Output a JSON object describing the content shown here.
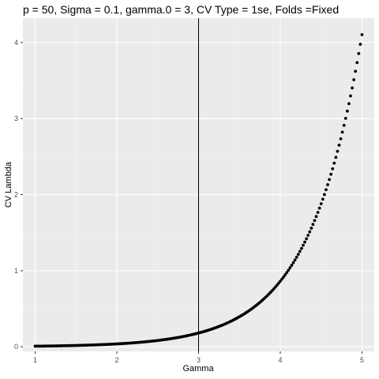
{
  "chart_data": {
    "type": "scatter",
    "title": "p = 50, Sigma = 0.1, gamma.0 = 3, CV Type = 1se, Folds =Fixed",
    "xlabel": "Gamma",
    "ylabel": "CV Lambda",
    "xlim": [
      0.85,
      5.15
    ],
    "ylim": [
      -0.06,
      4.32
    ],
    "x_ticks": [
      "1",
      "2",
      "3",
      "4",
      "5"
    ],
    "y_ticks": [
      "0",
      "1",
      "2",
      "3",
      "4"
    ],
    "x_tick_values": [
      1,
      2,
      3,
      4,
      5
    ],
    "y_tick_values": [
      0,
      1,
      2,
      3,
      4
    ],
    "vline_x": 3,
    "grid": true,
    "legend": "none",
    "x_range": [
      1,
      5
    ],
    "point_count": 201,
    "points_note": "",
    "series": [
      {
        "values_model": "y = 0.008 * exp(1.56 * (x - 1))",
        "x_start": 1,
        "x_end": 5,
        "x_step": 0.02
      }
    ],
    "colors": {
      "panel_background": "#ebebeb",
      "grid_major": "#ffffff",
      "grid_minor": "#f2f2f2",
      "points": "#000000",
      "vline": "#000000",
      "tick_label": "#4d4d4d"
    }
  }
}
